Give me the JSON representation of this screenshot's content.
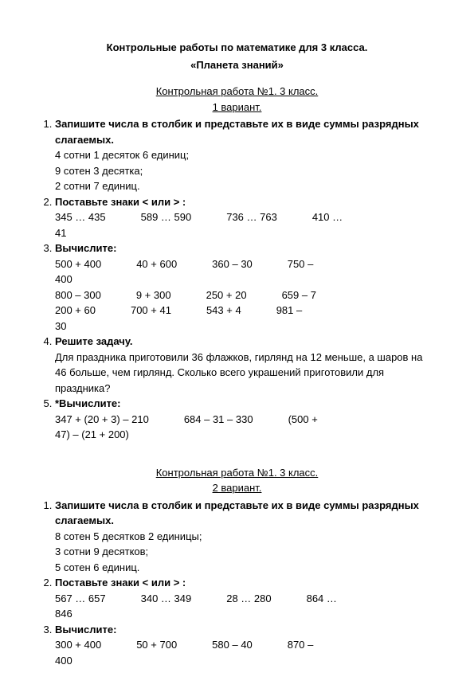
{
  "doc": {
    "title": "Контрольные работы по математике для 3 класса.",
    "subtitle": "«Планета знаний»"
  },
  "v1": {
    "heading": "Контрольная работа №1.    3 класс.",
    "variant": "1 вариант.",
    "t1": {
      "title": "Запишите числа в столбик и представьте их в виде суммы разрядных слагаемых.",
      "l1": "4 сотни   1 десяток   6 единиц;",
      "l2": "9 сотен   3 десятка;",
      "l3": "2 сотни   7 единиц."
    },
    "t2": {
      "title": "Поставьте знаки   <   или   >  :",
      "c1": "345 … 435",
      "c2": "589 … 590",
      "c3": "736 … 763",
      "c4": "410 …",
      "c4b": "41"
    },
    "t3": {
      "title": "Вычислите:",
      "r1c1": "500 + 400",
      "r1c2": "40 + 600",
      "r1c3": "360 – 30",
      "r1c4": "750 –",
      "r1c4b": "400",
      "r2c1": "800 – 300",
      "r2c2": "9 + 300",
      "r2c3": "250 + 20",
      "r2c4": "659 – 7",
      "r3c1": "200 + 60",
      "r3c2": "700 + 41",
      "r3c3": "543 + 4",
      "r3c4": "981 –",
      "r3c4b": "30"
    },
    "t4": {
      "title": "Решите задачу.",
      "text": "Для праздника приготовили 36 флажков, гирлянд на 12 меньше, а шаров на 46 больше, чем гирлянд. Сколько всего украшений приготовили для праздника?"
    },
    "t5": {
      "title": "*Вычислите:",
      "c1": "347 + (20 + 3) – 210",
      "c2": "684 – 31 – 330",
      "c3": "(500 +",
      "c3b": "47) – (21 + 200)"
    }
  },
  "v2": {
    "heading": "Контрольная работа №1.     3 класс.",
    "variant": "2 вариант.",
    "t1": {
      "title": "Запишите числа в столбик и представьте их в виде суммы разрядных слагаемых.",
      "l1": "8 сотен   5 десятков   2 единицы;",
      "l2": "3 сотни   9 десятков;",
      "l3": "5 сотен   6 единиц."
    },
    "t2": {
      "title": "Поставьте знаки   <   или   >  :",
      "c1": "567 … 657",
      "c2": "340 … 349",
      "c3": "28 … 280",
      "c4": "864 …",
      "c4b": "846"
    },
    "t3": {
      "title": "Вычислите:",
      "r1c1": "300 + 400",
      "r1c2": "50 + 700",
      "r1c3": "580 – 40",
      "r1c4": "870 –",
      "r1c4b": "400"
    }
  }
}
